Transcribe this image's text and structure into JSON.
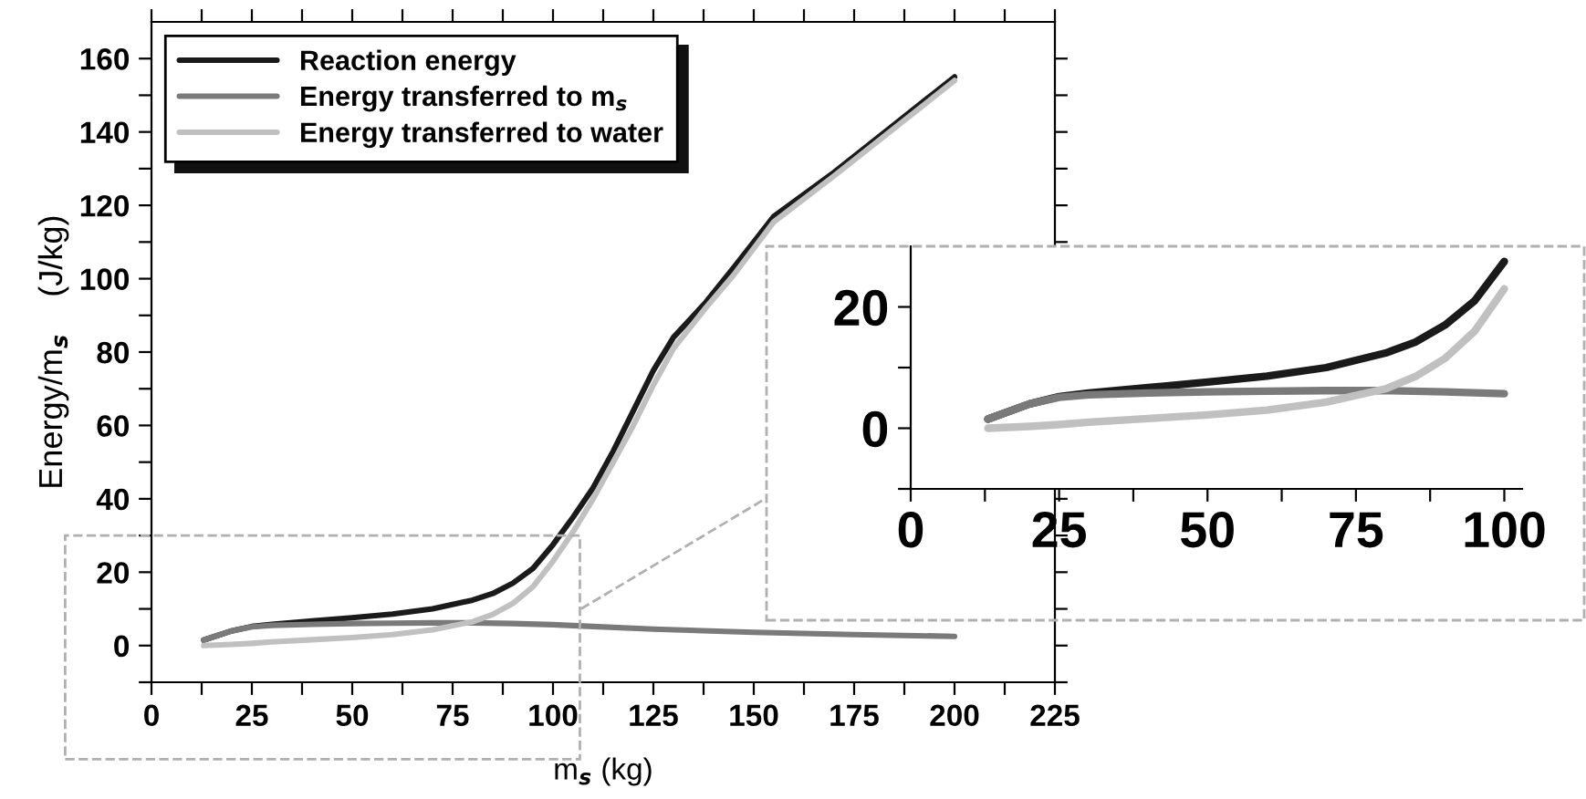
{
  "chart_data": [
    {
      "type": "line",
      "xlabel": "m$_{s}$ (kg)",
      "ylabel": "Energy/m$_{s}$    (J/kg)",
      "legend": "top left",
      "grid": false,
      "xlim": [
        0,
        225
      ],
      "ylim": [
        -10,
        170
      ],
      "xticks": [
        0,
        {
          "value": 12.5,
          "label": null
        },
        25,
        {
          "value": 37.5,
          "label": null
        },
        50,
        {
          "value": 62.5,
          "label": null
        },
        75,
        {
          "value": 87.5,
          "label": null
        },
        100,
        {
          "value": 112.5,
          "label": null
        },
        125,
        {
          "value": 137.5,
          "label": null
        },
        150,
        {
          "value": 162.5,
          "label": null
        },
        175,
        {
          "value": 187.5,
          "label": null
        },
        200,
        {
          "value": 212.5,
          "label": null
        },
        225
      ],
      "yticks": [
        {
          "value": -10,
          "label": null
        },
        0,
        {
          "value": 10,
          "label": null
        },
        20,
        {
          "value": 30,
          "label": null
        },
        40,
        {
          "value": 50,
          "label": null
        },
        60,
        {
          "value": 70,
          "label": null
        },
        80,
        {
          "value": 90,
          "label": null
        },
        100,
        {
          "value": 110,
          "label": null
        },
        120,
        {
          "value": 130,
          "label": null
        },
        140,
        {
          "value": 150,
          "label": null
        },
        160
      ],
      "series": [
        {
          "name": "Reaction energy",
          "color": "#1a1a1a",
          "x": [
            13,
            20,
            25,
            30,
            40,
            50,
            60,
            70,
            80,
            85,
            90,
            95,
            100,
            105,
            110,
            115,
            120,
            125,
            130,
            138,
            145,
            155,
            170,
            185,
            200
          ],
          "values": [
            1.5,
            4,
            5.2,
            5.8,
            6.7,
            7.6,
            8.6,
            10,
            12.4,
            14.2,
            17,
            21,
            27.5,
            35,
            43,
            53,
            64,
            75,
            84,
            93.5,
            103,
            117,
            129,
            142,
            155
          ]
        },
        {
          "name": "Energy transferred to m$_{s}$",
          "color": "#7a7a7a",
          "x": [
            13,
            20,
            25,
            30,
            40,
            50,
            60,
            70,
            80,
            90,
            100,
            110,
            125,
            150,
            175,
            200
          ],
          "values": [
            1.5,
            4,
            5.1,
            5.5,
            5.8,
            6,
            6.1,
            6.2,
            6.2,
            6,
            5.7,
            5.2,
            4.5,
            3.6,
            3,
            2.5
          ]
        },
        {
          "name": "Energy transferred to water",
          "color": "#c0c0c0",
          "x": [
            13,
            20,
            25,
            30,
            40,
            50,
            60,
            70,
            80,
            85,
            90,
            95,
            100,
            105,
            110,
            115,
            120,
            125,
            130,
            138,
            145,
            155,
            170,
            185,
            200
          ],
          "values": [
            0,
            0.3,
            0.6,
            1,
            1.6,
            2.2,
            3,
            4.3,
            6.5,
            8.5,
            11.5,
            16,
            23,
            31,
            40,
            50,
            60,
            71,
            81,
            92,
            101,
            115.5,
            128,
            141,
            154
          ]
        }
      ]
    },
    {
      "type": "line",
      "grid": false,
      "xlim": [
        0,
        103
      ],
      "ylim": [
        -10,
        30
      ],
      "xticks": [
        0,
        {
          "value": 12.5,
          "label": null
        },
        25,
        {
          "value": 37.5,
          "label": null
        },
        50,
        {
          "value": 62.5,
          "label": null
        },
        75,
        {
          "value": 87.5,
          "label": null
        },
        100
      ],
      "yticks": [
        {
          "value": -10,
          "label": null
        },
        0,
        {
          "value": 10,
          "label": null
        },
        20
      ],
      "series": [
        {
          "color": "#1a1a1a",
          "x": [
            13,
            20,
            25,
            30,
            40,
            50,
            60,
            70,
            80,
            85,
            90,
            95,
            100
          ],
          "values": [
            1.5,
            4,
            5.2,
            5.8,
            6.7,
            7.6,
            8.6,
            10,
            12.4,
            14.2,
            17,
            21,
            27.5
          ]
        },
        {
          "color": "#7a7a7a",
          "x": [
            13,
            20,
            25,
            30,
            40,
            50,
            60,
            70,
            80,
            90,
            100
          ],
          "values": [
            1.5,
            4,
            5.1,
            5.5,
            5.8,
            6,
            6.1,
            6.2,
            6.2,
            6,
            5.7
          ]
        },
        {
          "color": "#c0c0c0",
          "x": [
            13,
            20,
            25,
            30,
            40,
            50,
            60,
            70,
            80,
            85,
            90,
            95,
            100
          ],
          "values": [
            0,
            0.3,
            0.6,
            1,
            1.6,
            2.2,
            3,
            4.3,
            6.5,
            8.5,
            11.5,
            16,
            23
          ]
        }
      ]
    }
  ]
}
